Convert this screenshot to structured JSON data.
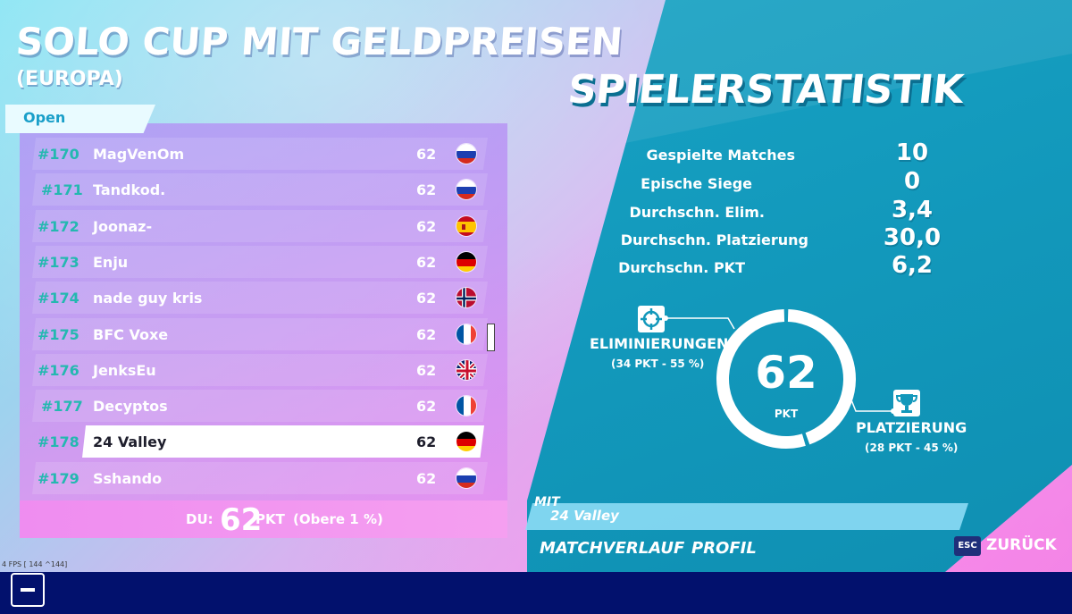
{
  "header": {
    "title": "SOLO CUP MIT GELDPREISEN",
    "subtitle": "(EUROPA)",
    "stats_title": "SPIELERSTATISTIK"
  },
  "leaderboard": {
    "tab_label": "Open",
    "rows": [
      {
        "rank": "#170",
        "name": "MagVenOm",
        "points": "62",
        "flag": "ru-flag-icon"
      },
      {
        "rank": "#171",
        "name": "Tandkod.",
        "points": "62",
        "flag": "ru-flag-icon"
      },
      {
        "rank": "#172",
        "name": "Joonaz-",
        "points": "62",
        "flag": "es-flag-icon"
      },
      {
        "rank": "#173",
        "name": "Enju",
        "points": "62",
        "flag": "de-flag-icon"
      },
      {
        "rank": "#174",
        "name": "nade guy kris",
        "points": "62",
        "flag": "no-flag-icon"
      },
      {
        "rank": "#175",
        "name": "BFC Voxe",
        "points": "62",
        "flag": "fr-flag-icon"
      },
      {
        "rank": "#176",
        "name": "JenksEu",
        "points": "62",
        "flag": "gb-flag-icon"
      },
      {
        "rank": "#177",
        "name": "Decyptos",
        "points": "62",
        "flag": "fr-flag-icon"
      },
      {
        "rank": "#178",
        "name": "24 Valley",
        "points": "62",
        "flag": "de-flag-icon",
        "selected": true
      },
      {
        "rank": "#179",
        "name": "Sshando",
        "points": "62",
        "flag": "ru-flag-icon"
      }
    ],
    "you": {
      "label": "DU:",
      "points": "62",
      "unit": "PKT",
      "rank_text": "(Obere 1 %)"
    }
  },
  "stats": {
    "rows": [
      {
        "label": "Gespielte Matches",
        "value": "10"
      },
      {
        "label": "Epische Siege",
        "value": "0"
      },
      {
        "label": "Durchschn. Elim.",
        "value": "3,4"
      },
      {
        "label": "Durchschn. Platzierung",
        "value": "30,0"
      },
      {
        "label": "Durchschn. PKT",
        "value": "6,2"
      }
    ],
    "donut": {
      "total": "62",
      "unit": "PKT",
      "elim_label": "ELIMINIERUNGEN",
      "elim_detail": "(34 PKT - 55 %)",
      "elim_fraction": 0.55,
      "place_label": "PLATZIERUNG",
      "place_detail": "(28 PKT - 45 %)",
      "place_fraction": 0.45
    }
  },
  "footer": {
    "mit_label": "MIT",
    "mit_name": "24 Valley",
    "nav": [
      "MATCHVERLAUF",
      "PROFIL"
    ],
    "esc_key": "ESC",
    "back_label": "ZURÜCK",
    "fps_text": "4 FPS [ 144 ^144]"
  },
  "colors": {
    "rank_teal": "#24b8b0",
    "panel_blue": "#1298bb",
    "taskbar": "#02116d"
  }
}
